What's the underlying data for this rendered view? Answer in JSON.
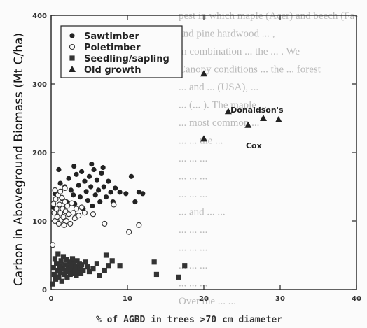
{
  "chart_data": {
    "type": "scatter",
    "xlabel": "% of AGBD in trees >70 cm diameter",
    "ylabel": "Carbon in Aboveground Biomass (Mt C/ha)",
    "xlim": [
      0,
      40
    ],
    "ylim": [
      0,
      400
    ],
    "xticks": [
      0,
      10,
      20,
      30,
      40
    ],
    "yticks": [
      0,
      100,
      200,
      300,
      400
    ],
    "xtick_labels": [
      "0",
      "10",
      "20",
      "30",
      "40"
    ],
    "ytick_labels": [
      "0",
      "100",
      "200",
      "300",
      "400"
    ],
    "legend_position": "top-left",
    "series": [
      {
        "name": "Sawtimber",
        "marker": "filled-circle",
        "points": [
          [
            0.5,
            140
          ],
          [
            1.0,
            175
          ],
          [
            1.5,
            132
          ],
          [
            1.8,
            150
          ],
          [
            2.0,
            128
          ],
          [
            2.3,
            162
          ],
          [
            2.6,
            145
          ],
          [
            2.9,
            138
          ],
          [
            3.1,
            125
          ],
          [
            3.3,
            168
          ],
          [
            3.6,
            152
          ],
          [
            3.8,
            135
          ],
          [
            4.0,
            172
          ],
          [
            4.2,
            118
          ],
          [
            4.4,
            158
          ],
          [
            4.6,
            143
          ],
          [
            4.8,
            130
          ],
          [
            5.0,
            165
          ],
          [
            5.2,
            150
          ],
          [
            5.4,
            122
          ],
          [
            5.6,
            175
          ],
          [
            5.8,
            138
          ],
          [
            6.0,
            160
          ],
          [
            6.2,
            145
          ],
          [
            6.4,
            128
          ],
          [
            6.6,
            170
          ],
          [
            6.9,
            150
          ],
          [
            7.2,
            135
          ],
          [
            7.5,
            158
          ],
          [
            7.8,
            142
          ],
          [
            8.1,
            128
          ],
          [
            8.4,
            148
          ],
          [
            0.3,
            120
          ],
          [
            1.2,
            155
          ],
          [
            3.0,
            180
          ],
          [
            5.3,
            183
          ],
          [
            6.8,
            178
          ],
          [
            9.0,
            142
          ],
          [
            9.8,
            140
          ],
          [
            10.5,
            165
          ],
          [
            11.0,
            128
          ],
          [
            11.5,
            142
          ],
          [
            12.0,
            140
          ]
        ]
      },
      {
        "name": "Poletimber",
        "marker": "open-circle",
        "points": [
          [
            0.2,
            65
          ],
          [
            0.3,
            125
          ],
          [
            0.4,
            112
          ],
          [
            0.5,
            100
          ],
          [
            0.6,
            132
          ],
          [
            0.7,
            118
          ],
          [
            0.8,
            106
          ],
          [
            0.9,
            138
          ],
          [
            1.0,
            96
          ],
          [
            1.1,
            124
          ],
          [
            1.2,
            112
          ],
          [
            1.3,
            102
          ],
          [
            1.4,
            134
          ],
          [
            1.5,
            118
          ],
          [
            1.6,
            106
          ],
          [
            1.7,
            94
          ],
          [
            1.8,
            128
          ],
          [
            1.9,
            114
          ],
          [
            2.0,
            100
          ],
          [
            2.1,
            122
          ],
          [
            2.3,
            110
          ],
          [
            2.5,
            96
          ],
          [
            2.7,
            126
          ],
          [
            2.9,
            112
          ],
          [
            3.1,
            104
          ],
          [
            3.3,
            118
          ],
          [
            3.6,
            108
          ],
          [
            4.0,
            120
          ],
          [
            4.4,
            112
          ],
          [
            5.5,
            110
          ],
          [
            7.0,
            96
          ],
          [
            8.2,
            124
          ],
          [
            10.2,
            84
          ],
          [
            11.5,
            94
          ],
          [
            0.5,
            145
          ],
          [
            1.2,
            143
          ],
          [
            1.8,
            148
          ]
        ]
      },
      {
        "name": "Seedling/sapling",
        "marker": "filled-square",
        "points": [
          [
            0.2,
            8
          ],
          [
            0.3,
            32
          ],
          [
            0.4,
            22
          ],
          [
            0.5,
            45
          ],
          [
            0.6,
            15
          ],
          [
            0.7,
            38
          ],
          [
            0.8,
            28
          ],
          [
            0.9,
            52
          ],
          [
            1.0,
            18
          ],
          [
            1.1,
            35
          ],
          [
            1.2,
            25
          ],
          [
            1.3,
            42
          ],
          [
            1.4,
            12
          ],
          [
            1.5,
            30
          ],
          [
            1.6,
            48
          ],
          [
            1.7,
            22
          ],
          [
            1.8,
            36
          ],
          [
            1.9,
            28
          ],
          [
            2.0,
            44
          ],
          [
            2.1,
            18
          ],
          [
            2.2,
            33
          ],
          [
            2.3,
            26
          ],
          [
            2.4,
            40
          ],
          [
            2.5,
            22
          ],
          [
            2.6,
            36
          ],
          [
            2.7,
            30
          ],
          [
            2.8,
            45
          ],
          [
            2.9,
            24
          ],
          [
            3.0,
            38
          ],
          [
            3.1,
            28
          ],
          [
            3.2,
            34
          ],
          [
            3.3,
            20
          ],
          [
            3.4,
            42
          ],
          [
            3.5,
            30
          ],
          [
            3.6,
            26
          ],
          [
            3.7,
            38
          ],
          [
            3.8,
            32
          ],
          [
            3.9,
            24
          ],
          [
            4.0,
            36
          ],
          [
            4.2,
            28
          ],
          [
            4.5,
            40
          ],
          [
            4.8,
            33
          ],
          [
            5.0,
            26
          ],
          [
            5.5,
            30
          ],
          [
            6.0,
            38
          ],
          [
            6.3,
            20
          ],
          [
            7.2,
            50
          ],
          [
            7.0,
            28
          ],
          [
            7.5,
            35
          ],
          [
            8.0,
            42
          ],
          [
            9.0,
            35
          ],
          [
            13.5,
            40
          ],
          [
            13.8,
            22
          ],
          [
            16.7,
            18
          ],
          [
            17.5,
            35
          ]
        ]
      },
      {
        "name": "Old growth",
        "marker": "filled-triangle",
        "points": [
          [
            20.0,
            315
          ],
          [
            20.0,
            220
          ],
          [
            23.2,
            260
          ],
          [
            25.8,
            240
          ],
          [
            27.8,
            250
          ],
          [
            29.8,
            248
          ]
        ]
      }
    ],
    "annotations": [
      {
        "text": "Donaldson's",
        "x": 23.5,
        "y": 262
      },
      {
        "text": "Cox",
        "x": 25.5,
        "y": 210
      }
    ]
  },
  "background_text": [
    "pest in which maple (Acer) and beech (Fa-",
    "and pine hardwood ... ,",
    "in combination ... the ... . We",
    "Canopy conditions ... the ... forest",
    "... and ... (USA), ...",
    "... (... ). The maple ... ",
    "... most common ...",
    "... ... the ... ",
    "... ... ...",
    "... ... ...",
    "... ... ...",
    "... and ... ...",
    "... ... ...",
    "... ... ...",
    "... ... ...",
    "... ... ...",
    "Over the ... ..."
  ]
}
